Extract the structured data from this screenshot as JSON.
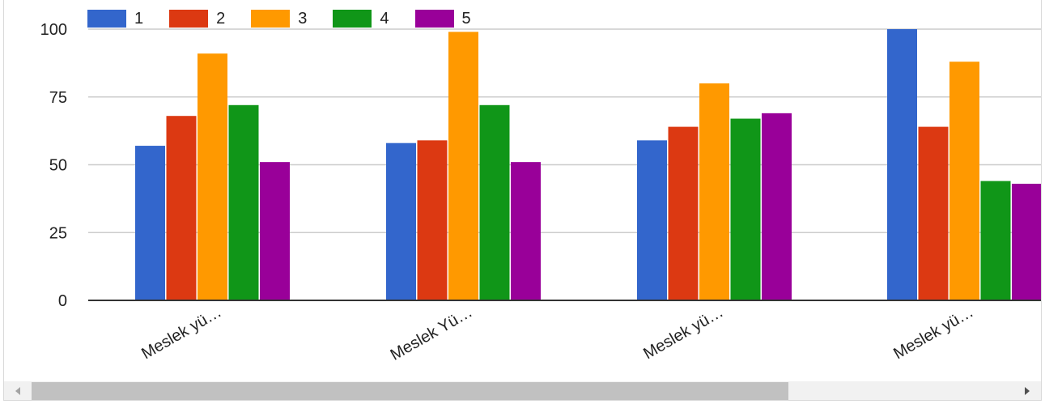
{
  "chart_data": {
    "type": "bar",
    "categories": [
      "Meslek yü…",
      "Meslek Yü…",
      "Meslek yü…",
      "Meslek yü…"
    ],
    "series": [
      {
        "name": "1",
        "color": "#3366cc",
        "values": [
          57,
          58,
          59,
          100
        ]
      },
      {
        "name": "2",
        "color": "#dc3912",
        "values": [
          68,
          59,
          64,
          64
        ]
      },
      {
        "name": "3",
        "color": "#ff9900",
        "values": [
          91,
          99,
          80,
          88
        ]
      },
      {
        "name": "4",
        "color": "#109618",
        "values": [
          72,
          72,
          67,
          44
        ]
      },
      {
        "name": "5",
        "color": "#990099",
        "values": [
          51,
          51,
          69,
          43
        ]
      }
    ],
    "yticks": [
      "0",
      "25",
      "50",
      "75",
      "100"
    ],
    "ylim": [
      0,
      100
    ],
    "grid": true,
    "legend_position": "top-left",
    "title": "",
    "xlabel": "",
    "ylabel": ""
  },
  "scrollbar": {
    "orientation": "horizontal",
    "left_icon": "arrow-left-icon",
    "right_icon": "arrow-right-icon"
  }
}
